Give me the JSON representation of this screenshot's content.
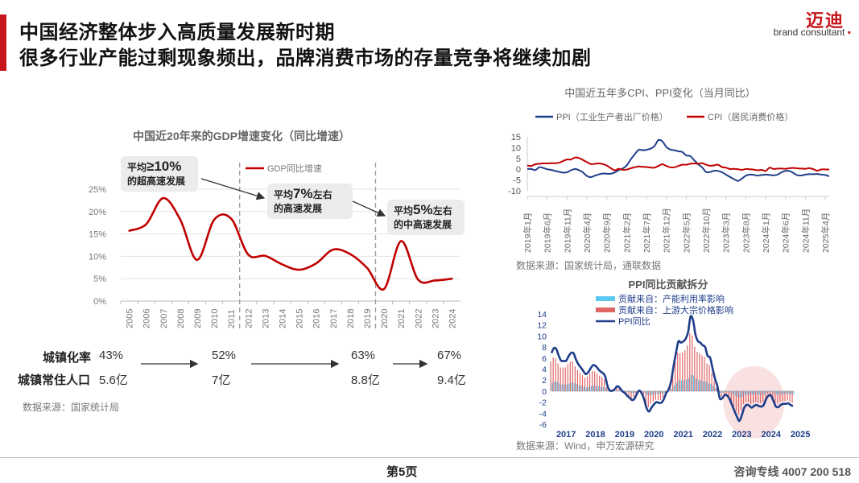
{
  "header": {
    "title_line1": "中国经济整体步入高质量发展新时期",
    "title_line2": "很多行业产能过剩现象频出，品牌消费市场的存量竞争将继续加剧",
    "logo_cn": "迈迪",
    "logo_en": "brand consultant",
    "accent_color": "#c8161d"
  },
  "footer": {
    "page_prefix": "第",
    "page_number": "5",
    "page_suffix": "页",
    "hotline": "咨询专线  4007 200 518"
  },
  "urbanization": {
    "rate_label": "城镇化率",
    "pop_label": "城镇常住人口",
    "rates": [
      "43%",
      "52%",
      "63%",
      "67%"
    ],
    "pops": [
      "5.6亿",
      "7亿",
      "8.8亿",
      "9.4亿"
    ]
  },
  "sources": {
    "gdp": "数据来源：国家统计局",
    "cpi": "数据来源：国家统计局，通联数据",
    "ppi": "数据来源：Wind，申万宏源研究"
  },
  "chart_data": [
    {
      "type": "line",
      "title": "中国近20年来的GDP增速变化（同比增速）",
      "series_name": "GDP同比增速",
      "color": "#c00000",
      "categories": [
        "2005",
        "2006",
        "2007",
        "2008",
        "2009",
        "2010",
        "2011",
        "2012",
        "2013",
        "2014",
        "2015",
        "2016",
        "2017",
        "2018",
        "2019",
        "2020",
        "2021",
        "2022",
        "2023",
        "2024"
      ],
      "values": [
        15.7,
        17.2,
        23.0,
        18.2,
        9.2,
        18.2,
        18.4,
        10.4,
        10.1,
        8.2,
        7.0,
        8.4,
        11.5,
        10.5,
        7.4,
        2.7,
        13.4,
        4.8,
        4.6,
        5.0
      ],
      "yticks": [
        "0%",
        "5%",
        "10%",
        "15%",
        "20%",
        "25%"
      ],
      "ylim": [
        0,
        25
      ],
      "dividers_after": [
        "2011",
        "2019"
      ],
      "callouts": [
        {
          "pre": "平均",
          "big": "≥10%",
          "post": "",
          "line2": "的超高速发展"
        },
        {
          "pre": "平均",
          "big": "7%",
          "post": "左右",
          "line2": "的高速发展"
        },
        {
          "pre": "平均",
          "big": "5%",
          "post": "左右",
          "line2": "的中高速发展"
        }
      ]
    },
    {
      "type": "line",
      "title": "中国近五年多CPI、PPI变化（当月同比）",
      "series": [
        {
          "name": "PPI（工业生产者出厂价格）",
          "color": "#1f3d8a",
          "values": [
            0.1,
            0.1,
            -0.4,
            0.9,
            0.6,
            0.0,
            -0.3,
            -0.8,
            -1.2,
            -1.6,
            -1.4,
            -0.5,
            0.1,
            -0.4,
            -1.5,
            -3.1,
            -3.7,
            -3.0,
            -2.4,
            -2.0,
            -2.1,
            -2.1,
            -1.5,
            -0.4,
            0.3,
            1.7,
            4.4,
            6.8,
            9.0,
            8.8,
            9.0,
            9.5,
            10.7,
            13.5,
            12.9,
            10.3,
            9.1,
            8.8,
            8.3,
            8.0,
            6.4,
            6.1,
            4.2,
            2.3,
            0.9,
            -1.3,
            -1.3,
            -0.7,
            -0.8,
            -1.4,
            -2.5,
            -3.6,
            -4.6,
            -5.4,
            -4.4,
            -3.0,
            -2.5,
            -2.6,
            -3.0,
            -2.7,
            -2.5,
            -2.7,
            -2.8,
            -2.5,
            -1.4,
            -0.8,
            -0.8,
            -1.8,
            -2.8,
            -2.9,
            -2.5,
            -2.3,
            -2.3,
            -2.2,
            -2.5,
            -2.7,
            -3.3
          ]
        },
        {
          "name": "CPI（居民消费价格）",
          "color": "#c00000",
          "values": [
            1.7,
            1.5,
            2.3,
            2.5,
            2.7,
            2.7,
            2.8,
            2.8,
            3.0,
            3.8,
            4.5,
            4.5,
            5.4,
            5.2,
            4.3,
            3.3,
            2.4,
            2.5,
            2.7,
            2.4,
            1.7,
            0.5,
            -0.5,
            0.2,
            -0.3,
            -0.2,
            0.4,
            0.9,
            1.3,
            1.1,
            1.0,
            0.8,
            0.7,
            1.5,
            2.3,
            1.5,
            0.9,
            0.9,
            1.5,
            2.1,
            2.1,
            2.5,
            2.7,
            2.5,
            2.8,
            2.1,
            1.6,
            1.8,
            2.1,
            1.0,
            0.7,
            0.1,
            0.2,
            0.0,
            -0.3,
            0.1,
            0.0,
            -0.2,
            -0.5,
            -0.3,
            -0.8,
            0.7,
            0.1,
            0.3,
            0.3,
            0.2,
            0.5,
            0.6,
            0.4,
            0.3,
            0.2,
            0.5,
            0.0,
            -0.7,
            -0.1,
            -0.1,
            -0.1
          ]
        }
      ],
      "x_labels": [
        "2019年1月",
        "2019年6月",
        "2019年11月",
        "2020年4月",
        "2020年9月",
        "2021年2月",
        "2021年7月",
        "2021年12月",
        "2022年5月",
        "2022年10月",
        "2023年3月",
        "2023年8月",
        "2024年1月",
        "2024年6月",
        "2024年11月",
        "2025年4月"
      ],
      "yticks": [
        "-10",
        "-5",
        "0",
        "5",
        "10",
        "15"
      ],
      "ylim": [
        -10,
        15
      ]
    },
    {
      "type": "bar",
      "title": "PPI同比贡献拆分",
      "legend": [
        {
          "name": "贡献来自：产能利用率影响",
          "color": "#5bc8f0"
        },
        {
          "name": "贡献来自：上游大宗价格影响",
          "color": "#e06666"
        },
        {
          "name": "PPI同比",
          "color": "#1f3d8a"
        }
      ],
      "year_labels": [
        "2017",
        "2018",
        "2019",
        "2020",
        "2021",
        "2022",
        "2023",
        "2024",
        "2025"
      ],
      "yticks": [
        "-6",
        "-4",
        "-2",
        "0",
        "2",
        "4",
        "6",
        "8",
        "10",
        "12",
        "14"
      ],
      "ylim": [
        -6,
        14
      ],
      "ppi_monthly": [
        6.9,
        7.8,
        7.6,
        6.4,
        5.5,
        5.5,
        5.5,
        6.3,
        6.9,
        6.9,
        5.8,
        4.9,
        4.3,
        3.7,
        3.1,
        3.4,
        4.1,
        4.7,
        4.6,
        4.1,
        3.6,
        3.3,
        2.7,
        0.9,
        0.1,
        0.1,
        0.4,
        0.9,
        0.6,
        0.0,
        -0.3,
        -0.8,
        -1.2,
        -1.6,
        -1.4,
        -0.5,
        0.1,
        -0.4,
        -1.5,
        -3.1,
        -3.7,
        -3.0,
        -2.4,
        -2.0,
        -2.1,
        -2.1,
        -1.5,
        -0.4,
        0.3,
        1.7,
        4.4,
        6.8,
        9.0,
        8.8,
        9.0,
        9.5,
        10.7,
        13.5,
        12.9,
        10.3,
        9.1,
        8.8,
        8.3,
        8.0,
        6.4,
        6.1,
        4.2,
        2.3,
        0.9,
        -1.3,
        -1.3,
        -0.7,
        -0.8,
        -1.4,
        -2.5,
        -3.6,
        -4.6,
        -5.4,
        -4.4,
        -3.0,
        -2.5,
        -2.6,
        -3.0,
        -2.7,
        -2.5,
        -2.7,
        -2.8,
        -2.5,
        -1.4,
        -0.8,
        -0.8,
        -1.8,
        -2.8,
        -2.9,
        -2.5,
        -2.3,
        -2.3,
        -2.2,
        -2.5,
        -2.7
      ]
    }
  ]
}
